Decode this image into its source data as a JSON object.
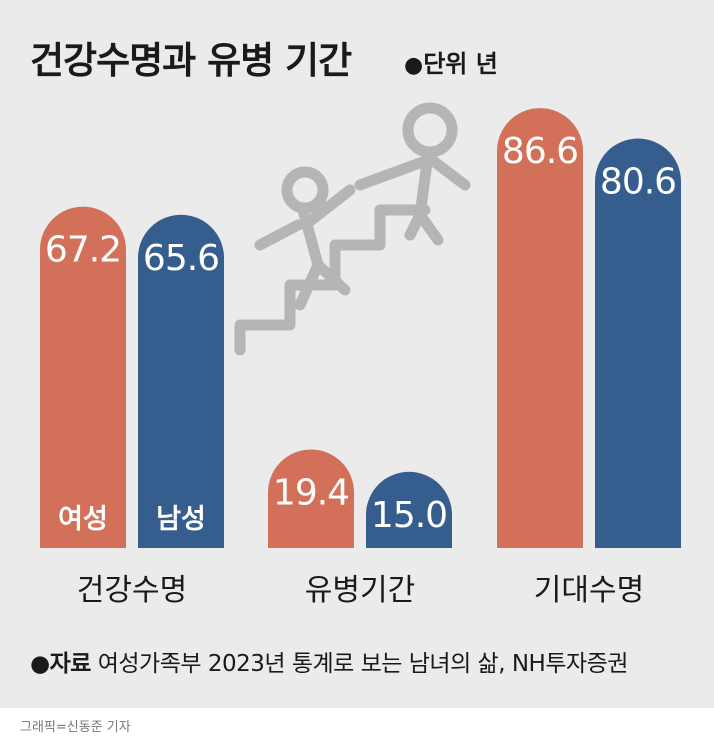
{
  "title": "건강수명과 유병 기간",
  "unit": "단위 년",
  "chart_data": {
    "type": "bar",
    "categories": [
      "건강수명",
      "유병기간",
      "기대수명"
    ],
    "series": [
      {
        "name": "여성",
        "values": [
          67.2,
          19.4,
          86.6
        ],
        "color": "#d3705a"
      },
      {
        "name": "남성",
        "values": [
          65.6,
          15.0,
          80.6
        ],
        "color": "#355e8e"
      }
    ],
    "value_labels": [
      [
        "67.2",
        "19.4",
        "86.6"
      ],
      [
        "65.6",
        "15.0",
        "80.6"
      ]
    ]
  },
  "source": {
    "label": "자료",
    "text": "여성가족부 2023년 통계로 보는 남녀의 삶, NH투자증권"
  },
  "credit": "그래픽=신동준 기자",
  "icon": "people-climbing-stairs-icon"
}
